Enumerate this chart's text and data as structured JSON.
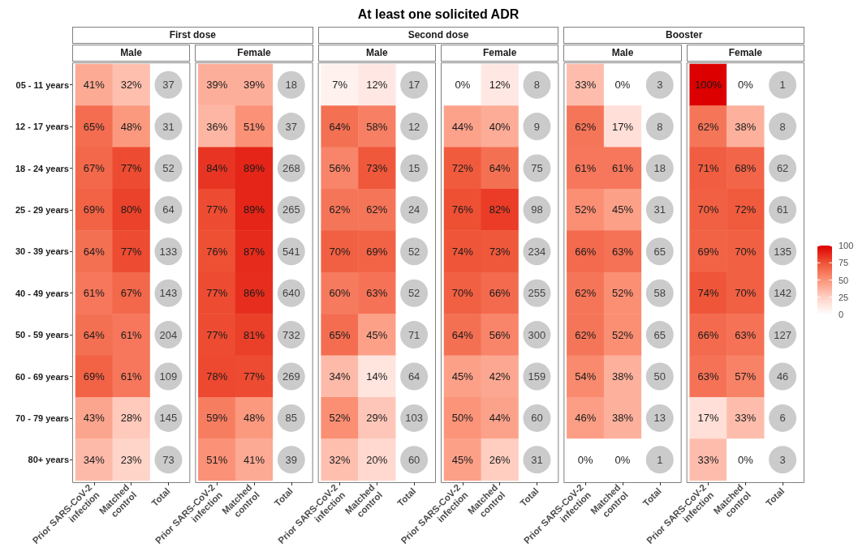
{
  "chart_data": [
    {
      "type": "heatmap",
      "title": "Male",
      "subtitle": "First dose",
      "annotations": [
        "At least one solicited ADR"
      ],
      "categories": [
        "Prior SARS-CoV-2\ninfection",
        "Matched\ncontrol",
        "Total"
      ],
      "y_categories": [
        "05 - 11 years",
        "12 - 17 years",
        "18 - 24 years",
        "25 - 29 years",
        "30 - 39 years",
        "40 - 49 years",
        "50 - 59 years",
        "60 - 69 years",
        "70 - 79 years",
        "80+ years"
      ],
      "cells": [
        [
          41,
          32,
          null
        ],
        [
          65,
          48,
          null
        ],
        [
          67,
          77,
          null
        ],
        [
          69,
          80,
          null
        ],
        [
          64,
          77,
          null
        ],
        [
          61,
          67,
          null
        ],
        [
          64,
          61,
          null
        ],
        [
          69,
          61,
          null
        ],
        [
          43,
          28,
          null
        ],
        [
          34,
          23,
          null
        ]
      ],
      "cell_labels": [
        [
          "41%",
          "32%",
          "37"
        ],
        [
          "65%",
          "48%",
          "31"
        ],
        [
          "67%",
          "77%",
          "52"
        ],
        [
          "69%",
          "80%",
          "64"
        ],
        [
          "64%",
          "77%",
          "133"
        ],
        [
          "61%",
          "67%",
          "143"
        ],
        [
          "64%",
          "61%",
          "204"
        ],
        [
          "69%",
          "61%",
          "109"
        ],
        [
          "43%",
          "28%",
          "145"
        ],
        [
          "34%",
          "23%",
          "73"
        ]
      ]
    },
    {
      "type": "heatmap",
      "title": "Female",
      "categories": [
        "Prior SARS-CoV-2\ninfection",
        "Matched\ncontrol",
        "Total"
      ],
      "y_categories": [
        null,
        null,
        null,
        null,
        null,
        null,
        null,
        null,
        null,
        null
      ],
      "cells": [
        [
          39,
          39,
          null
        ],
        [
          36,
          51,
          null
        ],
        [
          84,
          89,
          null
        ],
        [
          77,
          89,
          null
        ],
        [
          76,
          87,
          null
        ],
        [
          77,
          86,
          null
        ],
        [
          77,
          81,
          null
        ],
        [
          78,
          77,
          null
        ],
        [
          59,
          48,
          null
        ],
        [
          51,
          41,
          null
        ]
      ],
      "cell_labels": [
        [
          "39%",
          "39%",
          "18"
        ],
        [
          "36%",
          "51%",
          "37"
        ],
        [
          "84%",
          "89%",
          "268"
        ],
        [
          "77%",
          "89%",
          "265"
        ],
        [
          "76%",
          "87%",
          "541"
        ],
        [
          "77%",
          "86%",
          "640"
        ],
        [
          "77%",
          "81%",
          "732"
        ],
        [
          "78%",
          "77%",
          "269"
        ],
        [
          "59%",
          "48%",
          "85"
        ],
        [
          "51%",
          "41%",
          "39"
        ]
      ],
      "tick_labels": "x"
    },
    {
      "type": "heatmap",
      "title": "Male",
      "subtitle": "Second dose",
      "categories": [
        "Prior SARS-CoV-2\ninfection",
        "Matched\ncontrol",
        "Total"
      ],
      "y_categories": [
        null,
        null,
        null,
        null,
        null,
        null,
        null,
        null,
        null,
        null
      ],
      "cells": [
        [
          7,
          12,
          null
        ],
        [
          64,
          58,
          null
        ],
        [
          56,
          73,
          null
        ],
        [
          62,
          62,
          null
        ],
        [
          70,
          69,
          null
        ],
        [
          60,
          63,
          null
        ],
        [
          65,
          45,
          null
        ],
        [
          34,
          14,
          null
        ],
        [
          52,
          29,
          null
        ],
        [
          32,
          20,
          null
        ]
      ],
      "cell_labels": [
        [
          "7%",
          "12%",
          "17"
        ],
        [
          "64%",
          "58%",
          "12"
        ],
        [
          "56%",
          "73%",
          "15"
        ],
        [
          "62%",
          "62%",
          "24"
        ],
        [
          "70%",
          "69%",
          "52"
        ],
        [
          "60%",
          "63%",
          "52"
        ],
        [
          "65%",
          "45%",
          "71"
        ],
        [
          "34%",
          "14%",
          "64"
        ],
        [
          "52%",
          "29%",
          "103"
        ],
        [
          "32%",
          "20%",
          "60"
        ]
      ],
      "tick_labels": "x"
    },
    {
      "type": "heatmap",
      "title": "Female",
      "categories": [
        "Prior SARS-CoV-2\ninfection",
        "Matched\ncontrol",
        "Total"
      ],
      "y_categories": [
        null,
        null,
        null,
        null,
        null,
        null,
        null,
        null,
        null,
        null
      ],
      "cells": [
        [
          0,
          12,
          null
        ],
        [
          44,
          40,
          null
        ],
        [
          72,
          64,
          null
        ],
        [
          76,
          82,
          null
        ],
        [
          74,
          73,
          null
        ],
        [
          70,
          66,
          null
        ],
        [
          64,
          56,
          null
        ],
        [
          45,
          42,
          null
        ],
        [
          50,
          44,
          null
        ],
        [
          45,
          26,
          null
        ]
      ],
      "cell_labels": [
        [
          "0%",
          "12%",
          "8"
        ],
        [
          "44%",
          "40%",
          "9"
        ],
        [
          "72%",
          "64%",
          "75"
        ],
        [
          "76%",
          "82%",
          "98"
        ],
        [
          "74%",
          "73%",
          "234"
        ],
        [
          "70%",
          "66%",
          "255"
        ],
        [
          "64%",
          "56%",
          "300"
        ],
        [
          "45%",
          "42%",
          "159"
        ],
        [
          "50%",
          "44%",
          "60"
        ],
        [
          "45%",
          "26%",
          "31"
        ]
      ],
      "tick_labels": "x"
    },
    {
      "type": "heatmap",
      "title": "Male",
      "subtitle": "Booster",
      "categories": [
        "Prior SARS-CoV-2\ninfection",
        "Matched\ncontrol",
        "Total"
      ],
      "y_categories": [
        null,
        null,
        null,
        null,
        null,
        null,
        null,
        null,
        null,
        null
      ],
      "cells": [
        [
          33,
          0,
          null
        ],
        [
          62,
          17,
          null
        ],
        [
          61,
          61,
          null
        ],
        [
          52,
          45,
          null
        ],
        [
          66,
          63,
          null
        ],
        [
          62,
          52,
          null
        ],
        [
          62,
          52,
          null
        ],
        [
          54,
          38,
          null
        ],
        [
          46,
          38,
          null
        ],
        [
          0,
          0,
          null
        ]
      ],
      "cell_labels": [
        [
          "33%",
          "0%",
          "3"
        ],
        [
          "62%",
          "17%",
          "8"
        ],
        [
          "61%",
          "61%",
          "18"
        ],
        [
          "52%",
          "45%",
          "31"
        ],
        [
          "66%",
          "63%",
          "65"
        ],
        [
          "62%",
          "52%",
          "58"
        ],
        [
          "62%",
          "52%",
          "65"
        ],
        [
          "54%",
          "38%",
          "50"
        ],
        [
          "46%",
          "38%",
          "13"
        ],
        [
          "0%",
          "0%",
          "1"
        ]
      ],
      "tick_labels": "x"
    },
    {
      "type": "heatmap",
      "title": "Female",
      "categories": [
        "Prior SARS-CoV-2\ninfection",
        "Matched\ncontrol",
        "Total"
      ],
      "y_categories": [
        null,
        null,
        null,
        null,
        null,
        null,
        null,
        null,
        null,
        null
      ],
      "cells": [
        [
          100,
          0,
          null
        ],
        [
          62,
          38,
          null
        ],
        [
          71,
          68,
          null
        ],
        [
          70,
          72,
          null
        ],
        [
          69,
          70,
          null
        ],
        [
          74,
          70,
          null
        ],
        [
          66,
          63,
          null
        ],
        [
          63,
          57,
          null
        ],
        [
          17,
          33,
          null
        ],
        [
          33,
          0,
          null
        ]
      ],
      "cell_labels": [
        [
          "100%",
          "0%",
          "1"
        ],
        [
          "62%",
          "38%",
          "8"
        ],
        [
          "71%",
          "68%",
          "62"
        ],
        [
          "70%",
          "72%",
          "61"
        ],
        [
          "69%",
          "70%",
          "135"
        ],
        [
          "74%",
          "70%",
          "142"
        ],
        [
          "66%",
          "63%",
          "127"
        ],
        [
          "63%",
          "57%",
          "46"
        ],
        [
          "17%",
          "33%",
          "6"
        ],
        [
          "33%",
          "0%",
          "3"
        ]
      ],
      "clim": [
        0,
        100
      ],
      "cticks": [
        0,
        25,
        50,
        75,
        100
      ],
      "tick_labels": "x"
    }
  ]
}
